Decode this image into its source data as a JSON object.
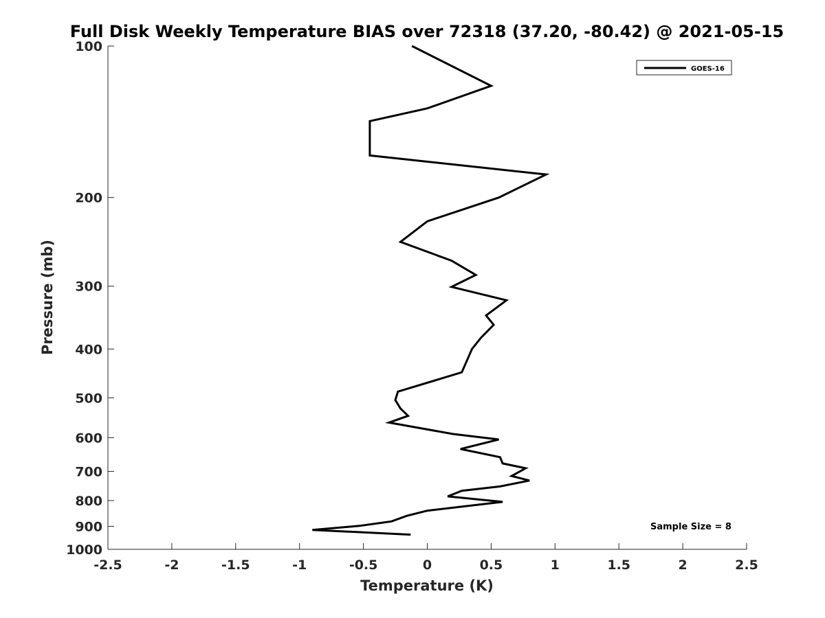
{
  "chart_data": {
    "type": "line",
    "title": "Full Disk Weekly Temperature BIAS over 72318 (37.20, -80.42) @ 2021-05-15",
    "xlabel": "Temperature (K)",
    "ylabel": "Pressure (mb)",
    "xlim": [
      -2.5,
      2.5
    ],
    "ylim": [
      100,
      1000
    ],
    "y_scale": "log",
    "y_reversed": true,
    "x_ticks": [
      -2.5,
      -2,
      -1.5,
      -1,
      -0.5,
      0,
      0.5,
      1,
      1.5,
      2,
      2.5
    ],
    "x_tick_labels": [
      "-2.5",
      "-2",
      "-1.5",
      "-1",
      "-0.5",
      "0",
      "0.5",
      "1",
      "1.5",
      "2",
      "2.5"
    ],
    "y_ticks": [
      100,
      200,
      300,
      400,
      500,
      600,
      700,
      800,
      900,
      1000
    ],
    "y_tick_labels": [
      "100",
      "200",
      "300",
      "400",
      "500",
      "600",
      "700",
      "800",
      "900",
      "1000"
    ],
    "grid": false,
    "legend_position": "top-right",
    "series": [
      {
        "name": "GOES-16",
        "color": "#000000",
        "points": [
          [
            -0.12,
            100
          ],
          [
            0.5,
            120
          ],
          [
            0.0,
            133
          ],
          [
            -0.45,
            141
          ],
          [
            -0.45,
            161
          ],
          [
            -0.45,
            165
          ],
          [
            0.93,
            180
          ],
          [
            0.56,
            200
          ],
          [
            0.0,
            223
          ],
          [
            -0.21,
            245
          ],
          [
            0.19,
            267
          ],
          [
            0.38,
            285
          ],
          [
            0.19,
            301
          ],
          [
            0.62,
            320
          ],
          [
            0.46,
            343
          ],
          [
            0.52,
            358
          ],
          [
            0.42,
            380
          ],
          [
            0.35,
            400
          ],
          [
            0.27,
            445
          ],
          [
            -0.23,
            486
          ],
          [
            -0.25,
            505
          ],
          [
            -0.21,
            525
          ],
          [
            -0.15,
            543
          ],
          [
            -0.3,
            560
          ],
          [
            0.2,
            590
          ],
          [
            0.56,
            605
          ],
          [
            0.26,
            632
          ],
          [
            0.57,
            656
          ],
          [
            0.59,
            675
          ],
          [
            0.77,
            690
          ],
          [
            0.66,
            715
          ],
          [
            0.8,
            730
          ],
          [
            0.57,
            750
          ],
          [
            0.27,
            765
          ],
          [
            0.16,
            785
          ],
          [
            0.59,
            805
          ],
          [
            0.0,
            838
          ],
          [
            -0.16,
            858
          ],
          [
            -0.28,
            880
          ],
          [
            -0.53,
            898
          ],
          [
            -0.9,
            915
          ],
          [
            -0.13,
            935
          ]
        ]
      }
    ],
    "annotations": [
      "Sample Size = 8"
    ]
  }
}
